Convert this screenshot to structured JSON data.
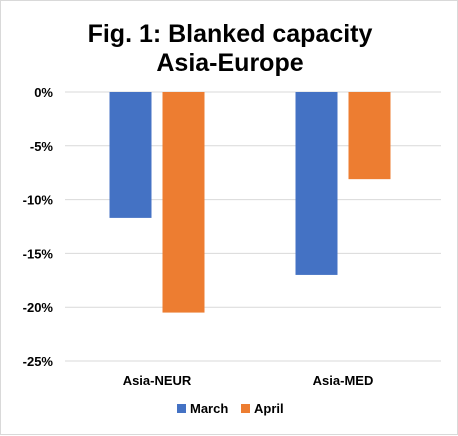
{
  "chart_data": {
    "type": "bar",
    "title_lines": [
      "Fig. 1: Blanked capacity",
      "Asia-Europe"
    ],
    "categories": [
      "Asia-NEUR",
      "Asia-MED"
    ],
    "series": [
      {
        "name": "March",
        "color": "#4472C4",
        "values": [
          -11.7,
          -17.0
        ]
      },
      {
        "name": "April",
        "color": "#ED7D31",
        "values": [
          -20.5,
          -8.1
        ]
      }
    ],
    "ylim": [
      -25,
      0
    ],
    "yticks": [
      0,
      -5,
      -10,
      -15,
      -20,
      -25
    ],
    "ytick_labels": [
      "0%",
      "-5%",
      "-10%",
      "-15%",
      "-20%",
      "-25%"
    ],
    "grid": true,
    "grid_color": "#d9d9d9",
    "legend_position": "bottom"
  }
}
